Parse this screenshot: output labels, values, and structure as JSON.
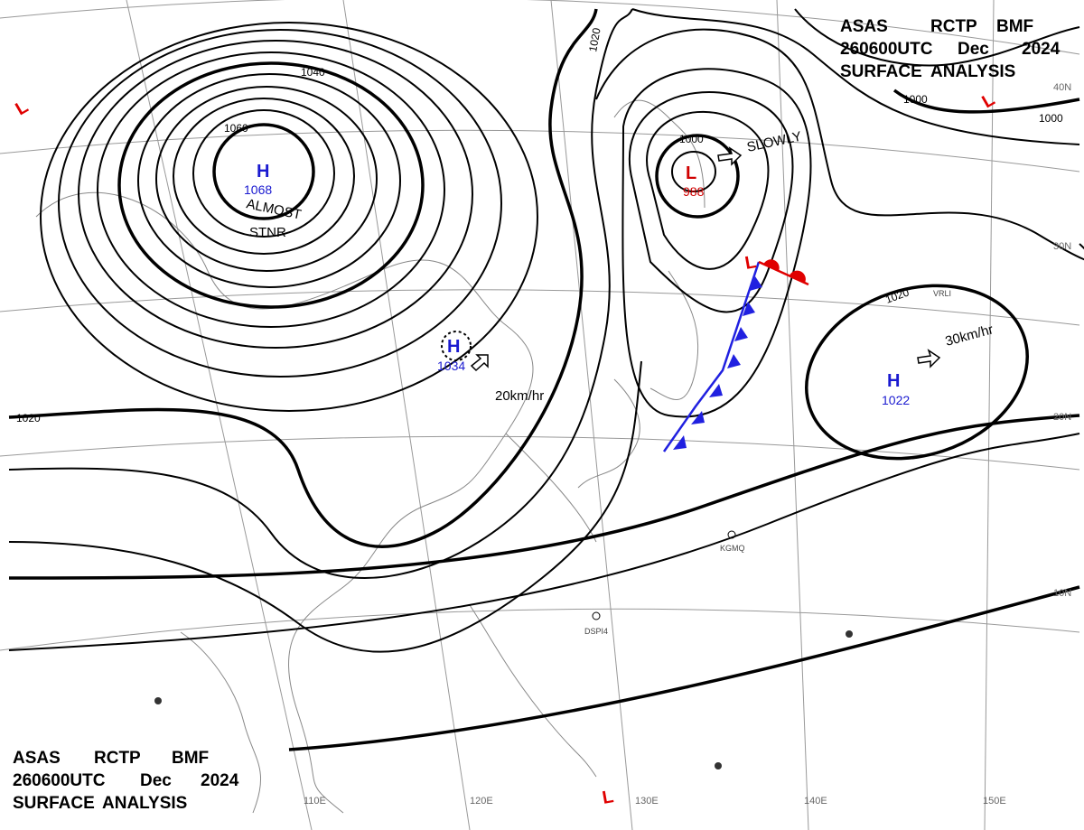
{
  "header": {
    "lines": [
      [
        "ASAS",
        "RCTP",
        "BMF"
      ],
      [
        "260600UTC",
        "Dec",
        "2024"
      ],
      [
        "SURFACE",
        "ANALYSIS"
      ]
    ]
  },
  "isobar_labels": [
    "1040",
    "1060",
    "1020",
    "1000",
    "1020",
    "1000",
    "1000",
    "1020"
  ],
  "centers": [
    {
      "type": "H",
      "pressure": "1068"
    },
    {
      "type": "L",
      "pressure": "988"
    },
    {
      "type": "H",
      "pressure": "1034"
    },
    {
      "type": "H",
      "pressure": "1022"
    }
  ],
  "motion": [
    "ALMOST",
    "STNR",
    "SLOWLY",
    "20km/hr",
    "30km/hr"
  ],
  "low_marks": [
    "L",
    "L",
    "L",
    "L"
  ],
  "latitudes": [
    "40N",
    "30N",
    "20N",
    "10N"
  ],
  "longitudes": [
    "110E",
    "120E",
    "130E",
    "140E",
    "150E"
  ],
  "stations": [
    "KGMQ",
    "DSPI4",
    "VRLI"
  ]
}
